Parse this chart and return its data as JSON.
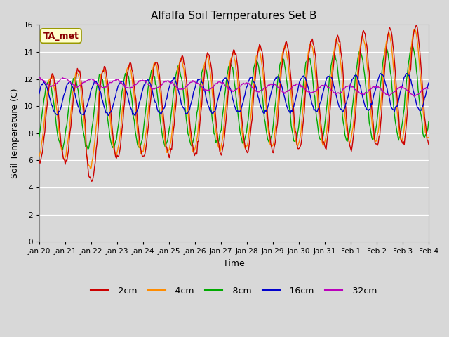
{
  "title": "Alfalfa Soil Temperatures Set B",
  "xlabel": "Time",
  "ylabel": "Soil Temperature (C)",
  "ylim": [
    0,
    16
  ],
  "yticks": [
    0,
    2,
    4,
    6,
    8,
    10,
    12,
    14,
    16
  ],
  "background_color": "#d8d8d8",
  "plot_bg_color": "#d8d8d8",
  "annotation_text": "TA_met",
  "annotation_color": "#8b0000",
  "annotation_bg": "#ffffcc",
  "legend_entries": [
    "-2cm",
    "-4cm",
    "-8cm",
    "-16cm",
    "-32cm"
  ],
  "line_colors": [
    "#cc0000",
    "#ff8c00",
    "#00aa00",
    "#0000cc",
    "#bb00bb"
  ],
  "x_tick_labels": [
    "Jan 20",
    "Jan 21",
    "Jan 22",
    "Jan 23",
    "Jan 24",
    "Jan 25",
    "Jan 26",
    "Jan 27",
    "Jan 28",
    "Jan 29",
    "Jan 30",
    "Jan 31",
    "Feb 1",
    "Feb 2",
    "Feb 3",
    "Feb 4"
  ],
  "num_points": 480
}
